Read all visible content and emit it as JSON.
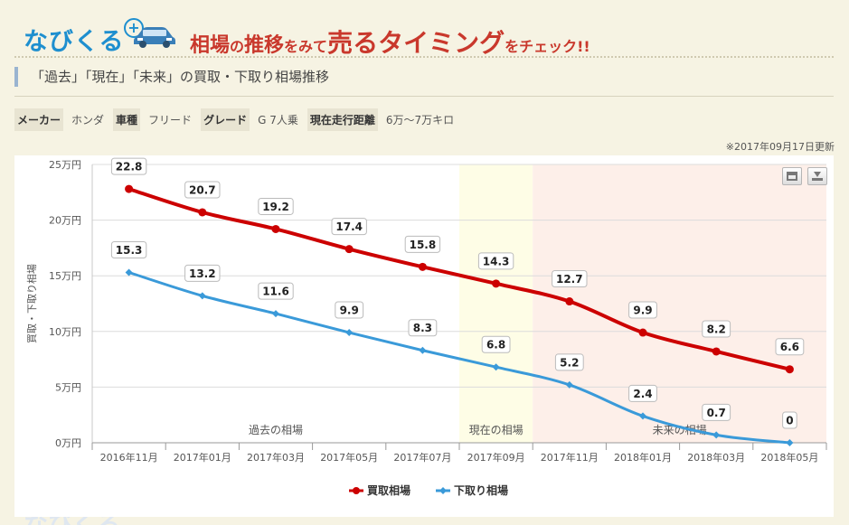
{
  "header": {
    "logo_text": "なびくる",
    "logo_plus": "+",
    "car_icon": "car-icon",
    "headline_part1": "相場",
    "headline_part2": "の",
    "headline_part3": "推移",
    "headline_part4": "をみて",
    "headline_part5": "売るタイミング",
    "headline_part6": "をチェック!!",
    "accent_color": "#c9382c",
    "logo_color": "#1e8fcf"
  },
  "section": {
    "title": "「過去」「現在」「未来」の買取・下取り相場推移"
  },
  "specs": [
    {
      "label": "メーカー",
      "value": "ホンダ"
    },
    {
      "label": "車種",
      "value": "フリード"
    },
    {
      "label": "グレード",
      "value": "G 7人乗"
    },
    {
      "label": "現在走行距離",
      "value": "6万〜7万キロ"
    }
  ],
  "updated": "※2017年09月17日更新",
  "chart_data": {
    "type": "line",
    "categories": [
      "2016年11月",
      "2017年01月",
      "2017年03月",
      "2017年05月",
      "2017年07月",
      "2017年09月",
      "2017年11月",
      "2018年01月",
      "2018年03月",
      "2018年05月"
    ],
    "series": [
      {
        "name": "買取相場",
        "color": "#cc0000",
        "values": [
          22.8,
          20.7,
          19.2,
          17.4,
          15.8,
          14.3,
          12.7,
          9.9,
          8.2,
          6.6
        ]
      },
      {
        "name": "下取り相場",
        "color": "#3a9ad9",
        "values": [
          15.3,
          13.2,
          11.6,
          9.9,
          8.3,
          6.8,
          5.2,
          2.4,
          0.7,
          0
        ]
      }
    ],
    "ylabel": "買取・下取り相場",
    "y_ticks": [
      0,
      5,
      10,
      15,
      20,
      25
    ],
    "y_tick_labels": [
      "0万円",
      "5万円",
      "10万円",
      "15万円",
      "20万円",
      "25万円"
    ],
    "ylim": [
      0,
      25
    ],
    "bands": [
      {
        "label": "過去の相場",
        "from": 0,
        "to": 5,
        "color": "#ffffff"
      },
      {
        "label": "現在の相場",
        "from": 5,
        "to": 6,
        "color": "#fefde6"
      },
      {
        "label": "未来の相場",
        "from": 6,
        "to": 10,
        "color": "#fdefe9"
      }
    ],
    "grid": true,
    "legend_position": "bottom-center"
  }
}
